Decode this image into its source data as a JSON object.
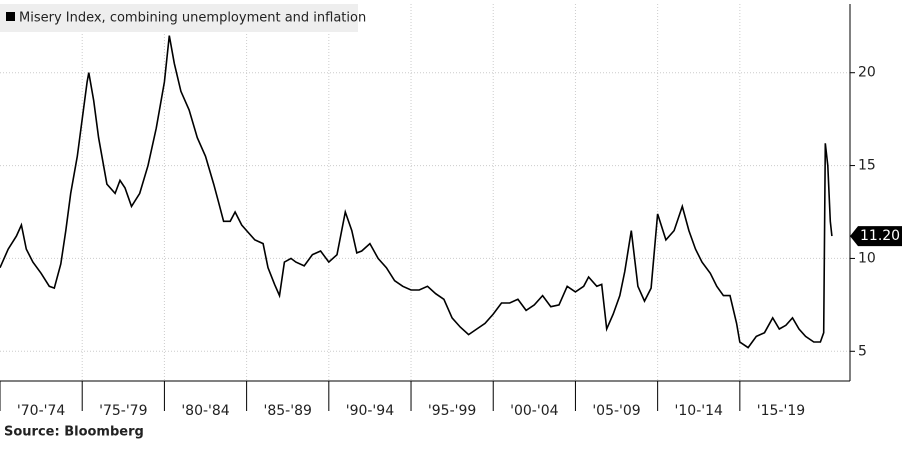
{
  "chart_data": {
    "type": "line",
    "source": "Source: Bloomberg",
    "series": [
      {
        "name": "Misery Index, combining unemployment and inflation",
        "color": "#000000",
        "x": [
          1970.0,
          1970.5,
          1971.0,
          1971.3,
          1971.6,
          1972.0,
          1972.5,
          1973.0,
          1973.3,
          1973.7,
          1974.0,
          1974.3,
          1974.7,
          1975.0,
          1975.3,
          1975.4,
          1975.7,
          1976.0,
          1976.5,
          1977.0,
          1977.3,
          1977.6,
          1978.0,
          1978.5,
          1979.0,
          1979.5,
          1980.0,
          1980.3,
          1980.6,
          1981.0,
          1981.5,
          1982.0,
          1982.5,
          1983.0,
          1983.3,
          1983.6,
          1984.0,
          1984.3,
          1984.7,
          1985.0,
          1985.5,
          1986.0,
          1986.3,
          1986.7,
          1987.0,
          1987.3,
          1987.7,
          1988.0,
          1988.5,
          1989.0,
          1989.5,
          1990.0,
          1990.5,
          1991.0,
          1991.4,
          1991.7,
          1992.0,
          1992.5,
          1993.0,
          1993.5,
          1994.0,
          1994.5,
          1995.0,
          1995.5,
          1996.0,
          1996.5,
          1997.0,
          1997.5,
          1998.0,
          1998.5,
          1999.0,
          1999.5,
          2000.0,
          2000.5,
          2001.0,
          2001.5,
          2002.0,
          2002.5,
          2003.0,
          2003.5,
          2004.0,
          2004.5,
          2005.0,
          2005.5,
          2005.8,
          2006.3,
          2006.6,
          2006.9,
          2007.3,
          2007.7,
          2008.0,
          2008.4,
          2008.8,
          2009.2,
          2009.6,
          2010.0,
          2010.5,
          2011.0,
          2011.5,
          2011.9,
          2012.3,
          2012.7,
          2013.2,
          2013.6,
          2014.0,
          2014.4,
          2014.8,
          2015.0,
          2015.5,
          2016.0,
          2016.5,
          2017.0,
          2017.4,
          2017.8,
          2018.2,
          2018.6,
          2019.0,
          2019.5,
          2019.9,
          2020.1,
          2020.2,
          2020.35,
          2020.5,
          2020.6
        ],
        "values": [
          9.5,
          10.5,
          11.2,
          11.8,
          10.5,
          9.8,
          9.2,
          8.5,
          8.4,
          9.7,
          11.5,
          13.5,
          15.5,
          17.5,
          19.5,
          20.0,
          18.5,
          16.5,
          14.0,
          13.5,
          14.2,
          13.8,
          12.8,
          13.5,
          15.0,
          17.0,
          19.5,
          22.0,
          20.5,
          19.0,
          18.0,
          16.5,
          15.5,
          14.0,
          13.0,
          12.0,
          12.0,
          12.5,
          11.8,
          11.5,
          11.0,
          10.8,
          9.5,
          8.6,
          8.0,
          9.8,
          10.0,
          9.8,
          9.6,
          10.2,
          10.4,
          9.8,
          10.2,
          12.5,
          11.5,
          10.3,
          10.4,
          10.8,
          10.0,
          9.5,
          8.8,
          8.5,
          8.3,
          8.3,
          8.5,
          8.1,
          7.8,
          6.8,
          6.3,
          5.9,
          6.2,
          6.5,
          7.0,
          7.6,
          7.6,
          7.8,
          7.2,
          7.5,
          8.0,
          7.4,
          7.5,
          8.5,
          8.2,
          8.5,
          9.0,
          8.5,
          8.6,
          6.2,
          7.0,
          8.0,
          9.3,
          11.5,
          8.5,
          7.7,
          8.4,
          12.4,
          11.0,
          11.5,
          12.8,
          11.5,
          10.5,
          9.8,
          9.2,
          8.5,
          8.0,
          8.0,
          6.5,
          5.5,
          5.2,
          5.8,
          6.0,
          6.8,
          6.2,
          6.4,
          6.8,
          6.2,
          5.8,
          5.5,
          5.5,
          6.0,
          16.2,
          15.0,
          12.0,
          11.2
        ]
      }
    ],
    "last_value": {
      "value": 11.2,
      "label": "11.20"
    },
    "xlim": [
      1970,
      2021.7
    ],
    "xticks": [
      {
        "value": 1970,
        "label": "'70-'74"
      },
      {
        "value": 1975,
        "label": "'75-'79"
      },
      {
        "value": 1980,
        "label": "'80-'84"
      },
      {
        "value": 1985,
        "label": "'85-'89"
      },
      {
        "value": 1990,
        "label": "'90-'94"
      },
      {
        "value": 1995,
        "label": "'95-'99"
      },
      {
        "value": 2000,
        "label": "'00-'04"
      },
      {
        "value": 2005,
        "label": "'05-'09"
      },
      {
        "value": 2010,
        "label": "'10-'14"
      },
      {
        "value": 2015,
        "label": "'15-'19"
      }
    ],
    "ylim": [
      3.4,
      23.7
    ],
    "yticks": [
      5,
      10,
      15,
      20
    ],
    "grid": true
  }
}
